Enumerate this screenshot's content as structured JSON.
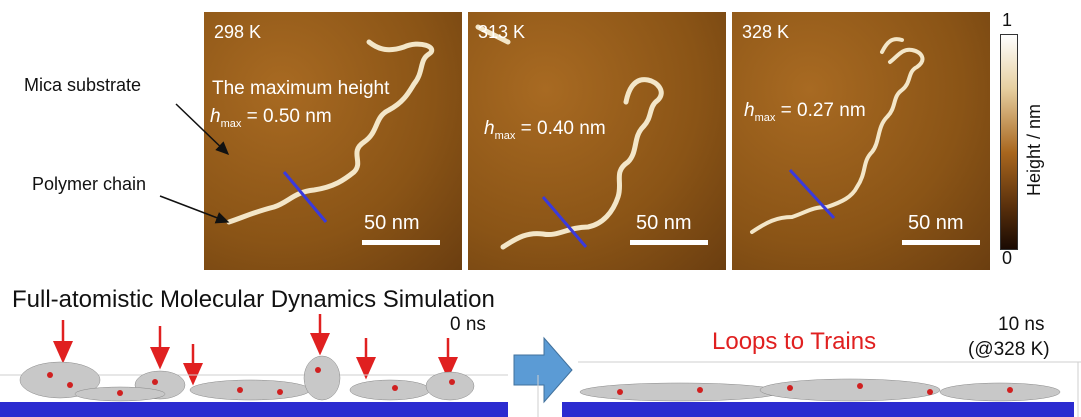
{
  "afm_panels": [
    {
      "temperature": "298 K",
      "extra_text": "The maximum height",
      "hmax_symbol": "h",
      "hmax_sub": "max",
      "hmax_value": " = 0.50 nm",
      "scale": "50 nm"
    },
    {
      "temperature": "313 K",
      "hmax_symbol": "h",
      "hmax_sub": "max",
      "hmax_value": " = 0.40 nm",
      "scale": "50 nm"
    },
    {
      "temperature": "328 K",
      "hmax_symbol": "h",
      "hmax_sub": "max",
      "hmax_value": " = 0.27 nm",
      "scale": "50 nm"
    }
  ],
  "labels": {
    "mica": "Mica substrate",
    "polymer": "Polymer chain"
  },
  "colorbar": {
    "max": "1",
    "min": "0",
    "title": "Height / nm"
  },
  "simulation": {
    "title": "Full-atomistic Molecular Dynamics Simulation",
    "time_start": "0 ns",
    "time_end": "10 ns",
    "time_end_note": "(@328 K)",
    "transition": "Loops to Trains"
  },
  "colors": {
    "afm_bg": "#8a5416",
    "chain": "#f3e6c8",
    "cut_line": "#3a3adc",
    "arrow_red": "#e02020",
    "arrow_blue": "#5b9bd5",
    "substrate": "#2b2bd0"
  }
}
